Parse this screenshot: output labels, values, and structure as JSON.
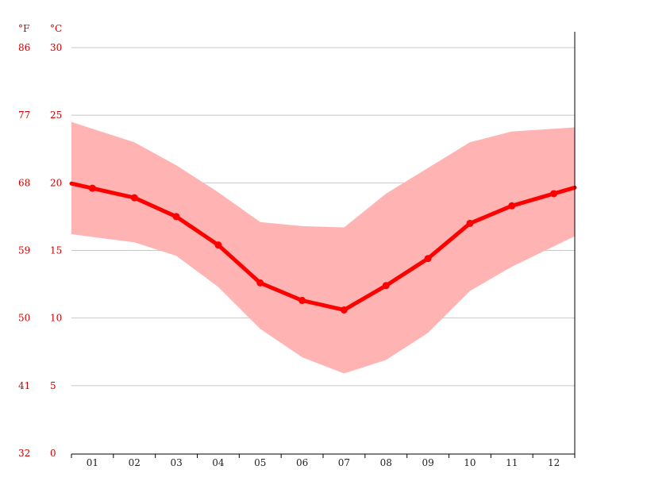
{
  "chart_data": {
    "type": "line",
    "title": "",
    "xlabel": "",
    "ylabel": "",
    "units": {
      "fahrenheit": "°F",
      "celsius": "°C"
    },
    "categories": [
      "01",
      "02",
      "03",
      "04",
      "05",
      "06",
      "07",
      "08",
      "09",
      "10",
      "11",
      "12"
    ],
    "y_ticks_celsius": [
      "0",
      "5",
      "10",
      "15",
      "20",
      "25",
      "30"
    ],
    "y_ticks_fahrenheit": [
      "32",
      "41",
      "50",
      "59",
      "68",
      "77",
      "86"
    ],
    "ylim": [
      0,
      30
    ],
    "grid": true,
    "colors": {
      "mean_line": "#ff0000",
      "range_band": "#ffb3b3",
      "label_text": "#cc0000"
    },
    "series": [
      {
        "values": [
          19.6,
          18.9,
          17.5,
          15.4,
          12.6,
          11.3,
          10.6,
          12.4,
          14.4,
          17.0,
          18.3,
          19.2
        ]
      }
    ],
    "range_band": {
      "x": [
        "01",
        "02",
        "03",
        "04",
        "05",
        "06",
        "07",
        "08",
        "09",
        "10",
        "11",
        "12"
      ],
      "max": [
        24.0,
        23.0,
        21.3,
        19.3,
        17.1,
        16.8,
        16.7,
        19.2,
        21.1,
        23.0,
        23.8,
        24.0
      ],
      "min": [
        16.0,
        15.6,
        14.6,
        12.3,
        9.2,
        7.1,
        5.9,
        6.9,
        8.9,
        12.0,
        13.8,
        15.3
      ]
    }
  }
}
